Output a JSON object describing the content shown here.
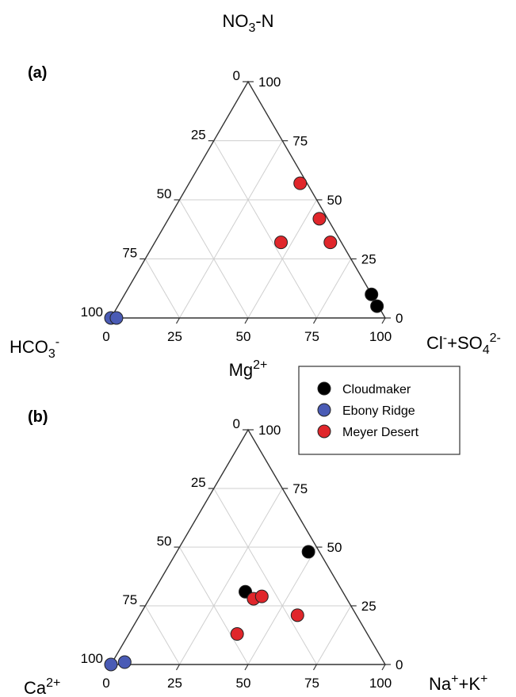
{
  "chart_data": [
    {
      "type": "scatter",
      "subtype": "ternary",
      "panel_label": "(a)",
      "apex_label": {
        "main": "NO",
        "sub": "3",
        "tail": "-N"
      },
      "left_label": {
        "main": "HCO",
        "sub": "3",
        "sup": "-"
      },
      "right_label": {
        "p1": "Cl",
        "sup1": "-",
        "p2": "+SO",
        "sub2": "4",
        "sup2": "2-"
      },
      "ticks": [
        "0",
        "25",
        "50",
        "75",
        "100"
      ],
      "grid": true,
      "series": [
        {
          "name": "Cloudmaker",
          "color": "#000000",
          "points": [
            {
              "bottom": 95,
              "top": 10
            },
            {
              "bottom": 97,
              "top": 5
            }
          ]
        },
        {
          "name": "Ebony Ridge",
          "color": "#4a5bb5",
          "points": [
            {
              "bottom": 0,
              "top": 0
            },
            {
              "bottom": 2,
              "top": 0
            }
          ]
        },
        {
          "name": "Meyer Desert",
          "color": "#e0262b",
          "points": [
            {
              "bottom": 69,
              "top": 57
            },
            {
              "bottom": 76,
              "top": 42
            },
            {
              "bottom": 62,
              "top": 32
            },
            {
              "bottom": 80,
              "top": 32
            }
          ]
        }
      ]
    },
    {
      "type": "scatter",
      "subtype": "ternary",
      "panel_label": "(b)",
      "apex_label": {
        "main": "Mg",
        "sup": "2+"
      },
      "left_label": {
        "main": "Ca",
        "sup": "2+"
      },
      "right_label": {
        "p1": "Na",
        "sup1": "+",
        "p2": "+K",
        "sup2": "+"
      },
      "ticks": [
        "0",
        "25",
        "50",
        "75",
        "100"
      ],
      "grid": true,
      "series": [
        {
          "name": "Cloudmaker",
          "color": "#000000",
          "points": [
            {
              "bottom": 72,
              "top": 48
            },
            {
              "bottom": 49,
              "top": 31
            }
          ]
        },
        {
          "name": "Ebony Ridge",
          "color": "#4a5bb5",
          "points": [
            {
              "bottom": 0,
              "top": 0
            },
            {
              "bottom": 5,
              "top": 1
            }
          ]
        },
        {
          "name": "Meyer Desert",
          "color": "#e0262b",
          "points": [
            {
              "bottom": 52,
              "top": 28
            },
            {
              "bottom": 55,
              "top": 29
            },
            {
              "bottom": 68,
              "top": 21
            },
            {
              "bottom": 46,
              "top": 13
            }
          ]
        }
      ]
    }
  ],
  "legend": {
    "placement": "right of panel (b) apex",
    "items": [
      {
        "name": "Cloudmaker",
        "color": "#000000"
      },
      {
        "name": "Ebony Ridge",
        "color": "#4a5bb5"
      },
      {
        "name": "Meyer Desert",
        "color": "#e0262b"
      }
    ]
  }
}
